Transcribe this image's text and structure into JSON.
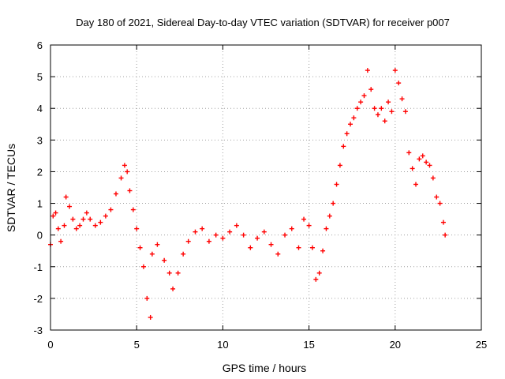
{
  "chart_data": {
    "type": "scatter",
    "title": "Day 180 of 2021, Sidereal Day-to-day VTEC variation (SDTVAR) for receiver p007",
    "xlabel": "GPS time / hours",
    "ylabel": "SDTVAR / TECUs",
    "xlim": [
      0,
      25
    ],
    "ylim": [
      -3,
      6
    ],
    "xticks": [
      0,
      5,
      10,
      15,
      20,
      25
    ],
    "yticks": [
      -3,
      -2,
      -1,
      0,
      1,
      2,
      3,
      4,
      5,
      6
    ],
    "grid": true,
    "marker": "+",
    "color": "#ff0000",
    "series": [
      {
        "name": "p007",
        "trace_note": "approximate main trace (hours, TECU) read from the plot",
        "points": [
          [
            0.0,
            -0.3
          ],
          [
            0.15,
            0.6
          ],
          [
            0.3,
            0.7
          ],
          [
            0.45,
            0.2
          ],
          [
            0.6,
            -0.2
          ],
          [
            0.8,
            0.3
          ],
          [
            0.9,
            1.2
          ],
          [
            1.1,
            0.9
          ],
          [
            1.3,
            0.5
          ],
          [
            1.5,
            0.2
          ],
          [
            1.7,
            0.3
          ],
          [
            1.9,
            0.5
          ],
          [
            2.1,
            0.7
          ],
          [
            2.3,
            0.5
          ],
          [
            2.6,
            0.3
          ],
          [
            2.9,
            0.4
          ],
          [
            3.2,
            0.6
          ],
          [
            3.5,
            0.8
          ],
          [
            3.8,
            1.3
          ],
          [
            4.1,
            1.8
          ],
          [
            4.3,
            2.2
          ],
          [
            4.45,
            2.0
          ],
          [
            4.6,
            1.4
          ],
          [
            4.8,
            0.8
          ],
          [
            5.0,
            0.2
          ],
          [
            5.2,
            -0.4
          ],
          [
            5.4,
            -1.0
          ],
          [
            5.6,
            -2.0
          ],
          [
            5.8,
            -2.6
          ],
          [
            5.9,
            -0.6
          ],
          [
            6.2,
            -0.3
          ],
          [
            6.6,
            -0.8
          ],
          [
            6.9,
            -1.2
          ],
          [
            7.1,
            -1.7
          ],
          [
            7.4,
            -1.2
          ],
          [
            7.7,
            -0.6
          ],
          [
            8.0,
            -0.2
          ],
          [
            8.4,
            0.1
          ],
          [
            8.8,
            0.2
          ],
          [
            9.2,
            -0.2
          ],
          [
            9.6,
            0.0
          ],
          [
            10.0,
            -0.1
          ],
          [
            10.4,
            0.1
          ],
          [
            10.8,
            0.3
          ],
          [
            11.2,
            0.0
          ],
          [
            11.6,
            -0.4
          ],
          [
            12.0,
            -0.1
          ],
          [
            12.4,
            0.1
          ],
          [
            12.8,
            -0.3
          ],
          [
            13.2,
            -0.6
          ],
          [
            13.6,
            0.0
          ],
          [
            14.0,
            0.2
          ],
          [
            14.4,
            -0.4
          ],
          [
            14.7,
            0.5
          ],
          [
            15.0,
            0.3
          ],
          [
            15.2,
            -0.4
          ],
          [
            15.4,
            -1.4
          ],
          [
            15.6,
            -1.2
          ],
          [
            15.8,
            -0.5
          ],
          [
            16.0,
            0.2
          ],
          [
            16.2,
            0.6
          ],
          [
            16.4,
            1.0
          ],
          [
            16.6,
            1.6
          ],
          [
            16.8,
            2.2
          ],
          [
            17.0,
            2.8
          ],
          [
            17.2,
            3.2
          ],
          [
            17.4,
            3.5
          ],
          [
            17.6,
            3.7
          ],
          [
            17.8,
            4.0
          ],
          [
            18.0,
            4.2
          ],
          [
            18.2,
            4.4
          ],
          [
            18.4,
            5.2
          ],
          [
            18.6,
            4.6
          ],
          [
            18.8,
            4.0
          ],
          [
            19.0,
            3.8
          ],
          [
            19.2,
            4.0
          ],
          [
            19.4,
            3.6
          ],
          [
            19.6,
            4.2
          ],
          [
            19.8,
            3.9
          ],
          [
            20.0,
            5.2
          ],
          [
            20.2,
            4.8
          ],
          [
            20.4,
            4.3
          ],
          [
            20.6,
            3.9
          ],
          [
            20.8,
            2.6
          ],
          [
            21.0,
            2.1
          ],
          [
            21.2,
            1.6
          ],
          [
            21.4,
            2.4
          ],
          [
            21.6,
            2.5
          ],
          [
            21.8,
            2.3
          ],
          [
            22.0,
            2.2
          ],
          [
            22.2,
            1.8
          ],
          [
            22.4,
            1.2
          ],
          [
            22.6,
            1.0
          ],
          [
            22.8,
            0.4
          ],
          [
            22.9,
            0.0
          ]
        ]
      }
    ]
  }
}
